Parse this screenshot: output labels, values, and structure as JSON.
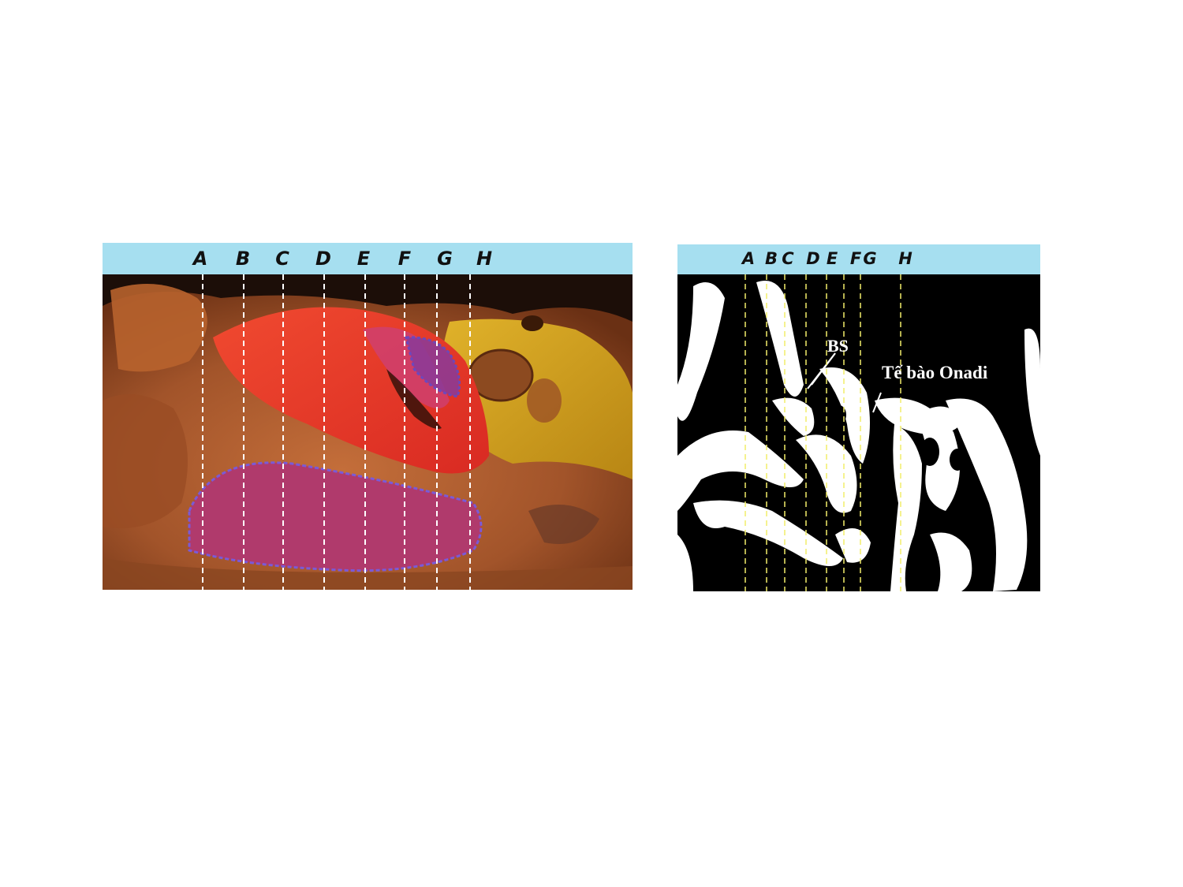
{
  "left_panel": {
    "section_labels": [
      "A",
      "B",
      "C",
      "D",
      "E",
      "F",
      "G",
      "H"
    ]
  },
  "right_panel": {
    "section_labels": [
      "A",
      "B",
      "C",
      "D",
      "E",
      "F",
      "G",
      "H"
    ],
    "annotations": {
      "bs": "BS",
      "onodi_cell": "Tế bào Onadi"
    }
  },
  "colors": {
    "header_bg": "#a6dff0",
    "dissection_red": "#e8342a",
    "dissection_purple": "#a0306e",
    "dissection_yellow": "#d2a41c",
    "ct_lines": "#f2ee6a"
  }
}
